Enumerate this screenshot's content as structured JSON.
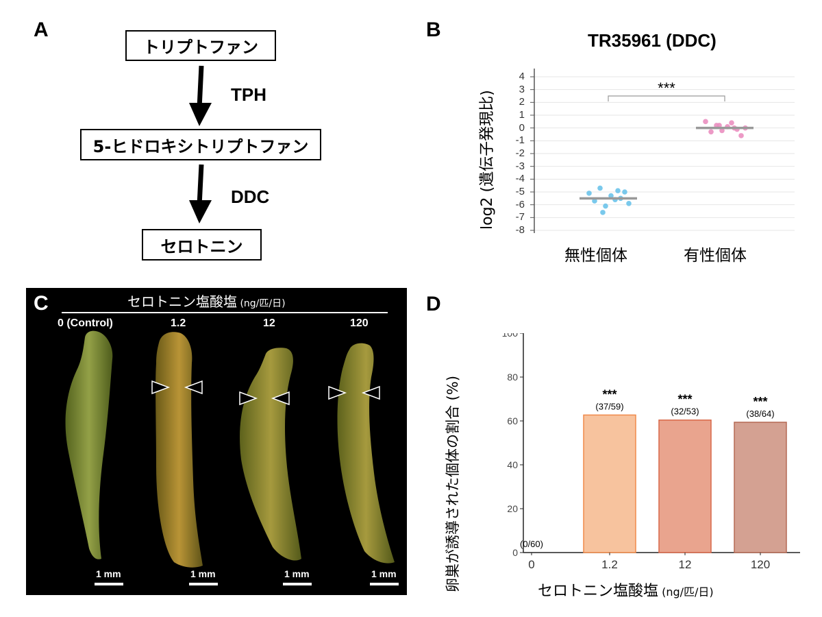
{
  "panels": {
    "a": {
      "letter": "A",
      "nodes": [
        "トリプトファン",
        "5-ヒドロキシトリプトファン",
        "セロトニン"
      ],
      "enzymes": [
        "TPH",
        "DDC"
      ]
    },
    "b": {
      "letter": "B",
      "title": "TR35961 (DDC)",
      "ylabel": "log2 (遺伝子発現比)",
      "yticks": [
        "4",
        "3",
        "2",
        "1",
        "0",
        "-1",
        "-2",
        "-3",
        "-4",
        "-5",
        "-6",
        "-7",
        "-8"
      ],
      "categories": [
        "無性個体",
        "有性個体"
      ],
      "significance": "***",
      "colors": {
        "asexual": "#6cc3ea",
        "sexual": "#ea8fc0",
        "median": "#999999"
      }
    },
    "c": {
      "letter": "C",
      "header_main": "セロトニン塩酸塩",
      "header_unit": "(ng/匹/日)",
      "doses": [
        "0 (Control)",
        "1.2",
        "12",
        "120"
      ],
      "scale_label": "1 mm"
    },
    "d": {
      "letter": "D",
      "ylabel": "卵巣が誘導された個体の割合 (%)",
      "xlabel_main": "セロトニン塩酸塩",
      "xlabel_unit": "(ng/匹/日)",
      "yticks": [
        "100",
        "80",
        "60",
        "40",
        "20",
        "0"
      ],
      "xticks": [
        "0",
        "1.2",
        "12",
        "120"
      ],
      "fractions": [
        "(0/60)",
        "(37/59)",
        "(32/53)",
        "(38/64)"
      ],
      "stars": [
        "",
        "***",
        "***",
        "***"
      ]
    }
  },
  "chart_data": [
    {
      "type": "scatter",
      "title": "TR35961 (DDC)",
      "xlabel": "",
      "ylabel": "log2 (遺伝子発現比)",
      "ylim": [
        -8,
        4
      ],
      "grid": true,
      "categories": [
        "無性個体",
        "有性個体"
      ],
      "series": [
        {
          "name": "無性個体",
          "color": "#6cc3ea",
          "values": [
            -5.1,
            -4.7,
            -5.3,
            -5.5,
            -5.9,
            -5.7,
            -6.1,
            -5.6,
            -5.0,
            -6.6,
            -4.9
          ],
          "median": -5.5
        },
        {
          "name": "有性個体",
          "color": "#ea8fc0",
          "values": [
            0.5,
            0.2,
            0.1,
            -0.1,
            0.0,
            -0.3,
            -0.2,
            0.4,
            -0.6,
            0.2,
            0.0
          ],
          "median": 0.0
        }
      ],
      "significance": "***"
    },
    {
      "type": "bar",
      "title": "",
      "xlabel": "セロトニン塩酸塩 (ng/匹/日)",
      "ylabel": "卵巣が誘導された個体の割合 (%)",
      "ylim": [
        0,
        100
      ],
      "categories": [
        "0",
        "1.2",
        "12",
        "120"
      ],
      "values": [
        0,
        62.7,
        60.4,
        59.4
      ],
      "labels": [
        "(0/60)",
        "(37/59)",
        "(32/53)",
        "(38/64)"
      ],
      "significance": [
        "",
        "***",
        "***",
        "***"
      ],
      "colors": [
        "#f7c39e",
        "#f7c39e",
        "#e9a48e",
        "#d4a192"
      ],
      "edge_colors": [
        "#f08a4a",
        "#f08a4a",
        "#d9694a",
        "#b56a55"
      ]
    }
  ]
}
